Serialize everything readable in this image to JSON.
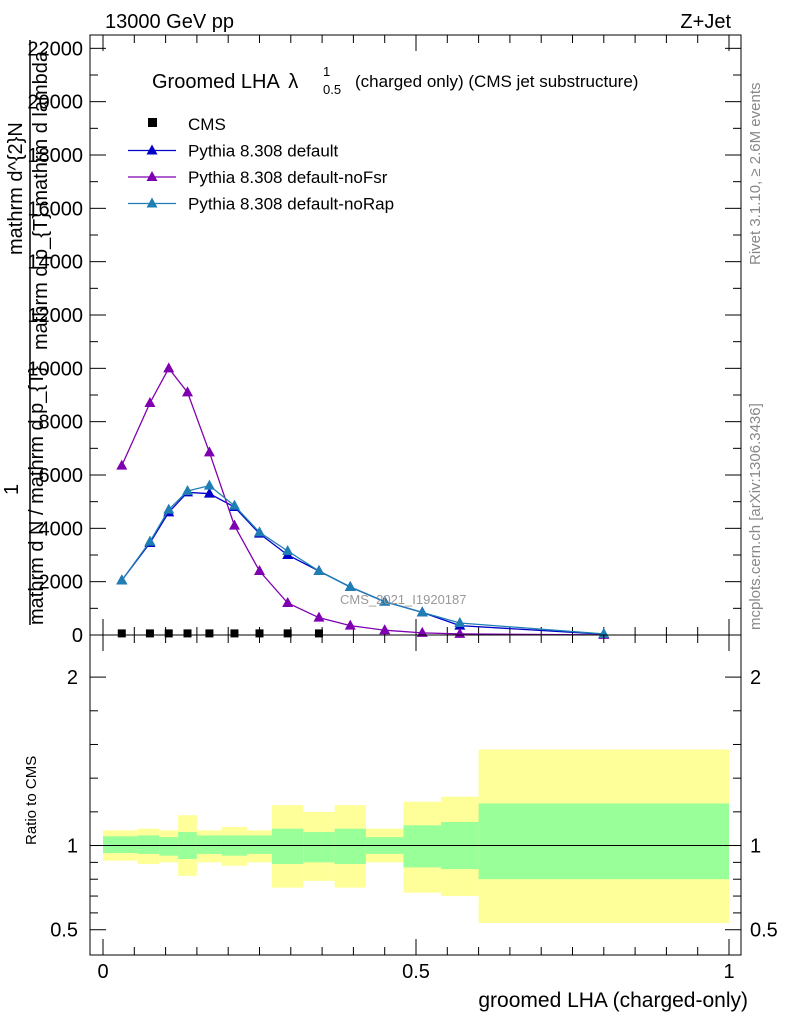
{
  "header": {
    "left": "13000 GeV pp",
    "right": "Z+Jet"
  },
  "title": {
    "main": "Groomed LHA",
    "symbol": "λ",
    "superscript": "1",
    "subscript": "0.5",
    "suffix": "(charged only) (CMS jet substructure)"
  },
  "side_labels": {
    "rivet": "Rivet 3.1.10, ≥ 2.6M events",
    "mcplots": "mcplots.cern.ch [arXiv:1306.3436]"
  },
  "watermark": "CMS_2021_I1920187",
  "legend": [
    {
      "name": "CMS",
      "color": "#000000",
      "marker": "square"
    },
    {
      "name": "Pythia 8.308 default",
      "color": "#0000c8",
      "marker": "triangle"
    },
    {
      "name": "Pythia 8.308 default-noFsr",
      "color": "#7f00b0",
      "marker": "triangle"
    },
    {
      "name": "Pythia 8.308 default-noRap",
      "color": "#1f7fb4",
      "marker": "triangle"
    }
  ],
  "ylabel": {
    "line1": "mathrm d^{2}N",
    "line2": "mathrm d p_{T} mathrm d lambda",
    "line3": "1",
    "line4": "mathrm d N / mathrm d p_{T}",
    "p": "p",
    "T": "T"
  },
  "chart_data": [
    {
      "type": "line",
      "panel": "main",
      "xlabel": "groomed LHA (charged-only)",
      "xlim": [
        0,
        1
      ],
      "ylim": [
        0,
        22500
      ],
      "yticks": [
        0,
        2000,
        4000,
        6000,
        8000,
        10000,
        12000,
        14000,
        16000,
        18000,
        20000,
        22000
      ],
      "ytick_labels": [
        "0",
        "2000",
        "4000",
        "6000",
        "8000",
        "10000",
        "12000",
        "14000",
        "16000",
        "18000",
        "20000",
        "22000"
      ],
      "xticks": [
        0,
        0.5,
        1
      ],
      "xtick_labels": [
        "0",
        "0.5",
        "1"
      ],
      "series": [
        {
          "name": "CMS",
          "color": "#000000",
          "x": [
            0.03,
            0.075,
            0.105,
            0.135,
            0.17,
            0.21,
            0.25,
            0.295,
            0.345
          ],
          "y": [
            60,
            60,
            60,
            60,
            60,
            60,
            60,
            60,
            60
          ]
        },
        {
          "name": "Pythia 8.308 default",
          "color": "#0000c8",
          "x": [
            0.03,
            0.075,
            0.105,
            0.135,
            0.17,
            0.21,
            0.25,
            0.295,
            0.345,
            0.395,
            0.45,
            0.51,
            0.57,
            0.8
          ],
          "y": [
            2050,
            3450,
            4600,
            5350,
            5300,
            4800,
            3800,
            3000,
            2400,
            1800,
            1250,
            850,
            350,
            30
          ]
        },
        {
          "name": "Pythia 8.308 default-noFsr",
          "color": "#7f00b0",
          "x": [
            0.03,
            0.075,
            0.105,
            0.135,
            0.17,
            0.21,
            0.25,
            0.295,
            0.345,
            0.395,
            0.45,
            0.51,
            0.57,
            0.8
          ],
          "y": [
            6350,
            8700,
            10000,
            9100,
            6850,
            4100,
            2400,
            1200,
            650,
            350,
            180,
            80,
            40,
            5
          ]
        },
        {
          "name": "Pythia 8.308 default-noRap",
          "color": "#1f7fb4",
          "x": [
            0.03,
            0.075,
            0.105,
            0.135,
            0.17,
            0.21,
            0.25,
            0.295,
            0.345,
            0.395,
            0.45,
            0.51,
            0.57,
            0.8
          ],
          "y": [
            2050,
            3500,
            4700,
            5400,
            5600,
            4850,
            3850,
            3150,
            2400,
            1800,
            1250,
            850,
            450,
            40
          ]
        }
      ]
    },
    {
      "type": "area",
      "panel": "ratio",
      "ylabel": "Ratio to CMS",
      "ylim": [
        0.35,
        2.25
      ],
      "yticks": [
        0.5,
        1,
        2
      ],
      "ytick_labels": [
        "0.5",
        "1",
        "2"
      ],
      "reference": 1,
      "bins": [
        {
          "x0": 0.0,
          "x1": 0.055,
          "inner": [
            0.955,
            1.055
          ],
          "outer": [
            0.91,
            1.09
          ]
        },
        {
          "x0": 0.055,
          "x1": 0.09,
          "inner": [
            0.95,
            1.06
          ],
          "outer": [
            0.89,
            1.1
          ]
        },
        {
          "x0": 0.09,
          "x1": 0.12,
          "inner": [
            0.94,
            1.05
          ],
          "outer": [
            0.9,
            1.09
          ]
        },
        {
          "x0": 0.12,
          "x1": 0.15,
          "inner": [
            0.92,
            1.08
          ],
          "outer": [
            0.82,
            1.18
          ]
        },
        {
          "x0": 0.15,
          "x1": 0.19,
          "inner": [
            0.95,
            1.06
          ],
          "outer": [
            0.9,
            1.09
          ]
        },
        {
          "x0": 0.19,
          "x1": 0.23,
          "inner": [
            0.94,
            1.06
          ],
          "outer": [
            0.88,
            1.11
          ]
        },
        {
          "x0": 0.23,
          "x1": 0.27,
          "inner": [
            0.95,
            1.06
          ],
          "outer": [
            0.9,
            1.09
          ]
        },
        {
          "x0": 0.27,
          "x1": 0.32,
          "inner": [
            0.89,
            1.1
          ],
          "outer": [
            0.75,
            1.24
          ]
        },
        {
          "x0": 0.32,
          "x1": 0.37,
          "inner": [
            0.9,
            1.08
          ],
          "outer": [
            0.79,
            1.2
          ]
        },
        {
          "x0": 0.37,
          "x1": 0.42,
          "inner": [
            0.89,
            1.1
          ],
          "outer": [
            0.75,
            1.24
          ]
        },
        {
          "x0": 0.42,
          "x1": 0.48,
          "inner": [
            0.95,
            1.05
          ],
          "outer": [
            0.9,
            1.1
          ]
        },
        {
          "x0": 0.48,
          "x1": 0.54,
          "inner": [
            0.87,
            1.12
          ],
          "outer": [
            0.72,
            1.26
          ]
        },
        {
          "x0": 0.54,
          "x1": 0.6,
          "inner": [
            0.86,
            1.14
          ],
          "outer": [
            0.7,
            1.29
          ]
        },
        {
          "x0": 0.6,
          "x1": 1.0,
          "inner": [
            0.8,
            1.25
          ],
          "outer": [
            0.54,
            1.57
          ]
        }
      ]
    }
  ]
}
